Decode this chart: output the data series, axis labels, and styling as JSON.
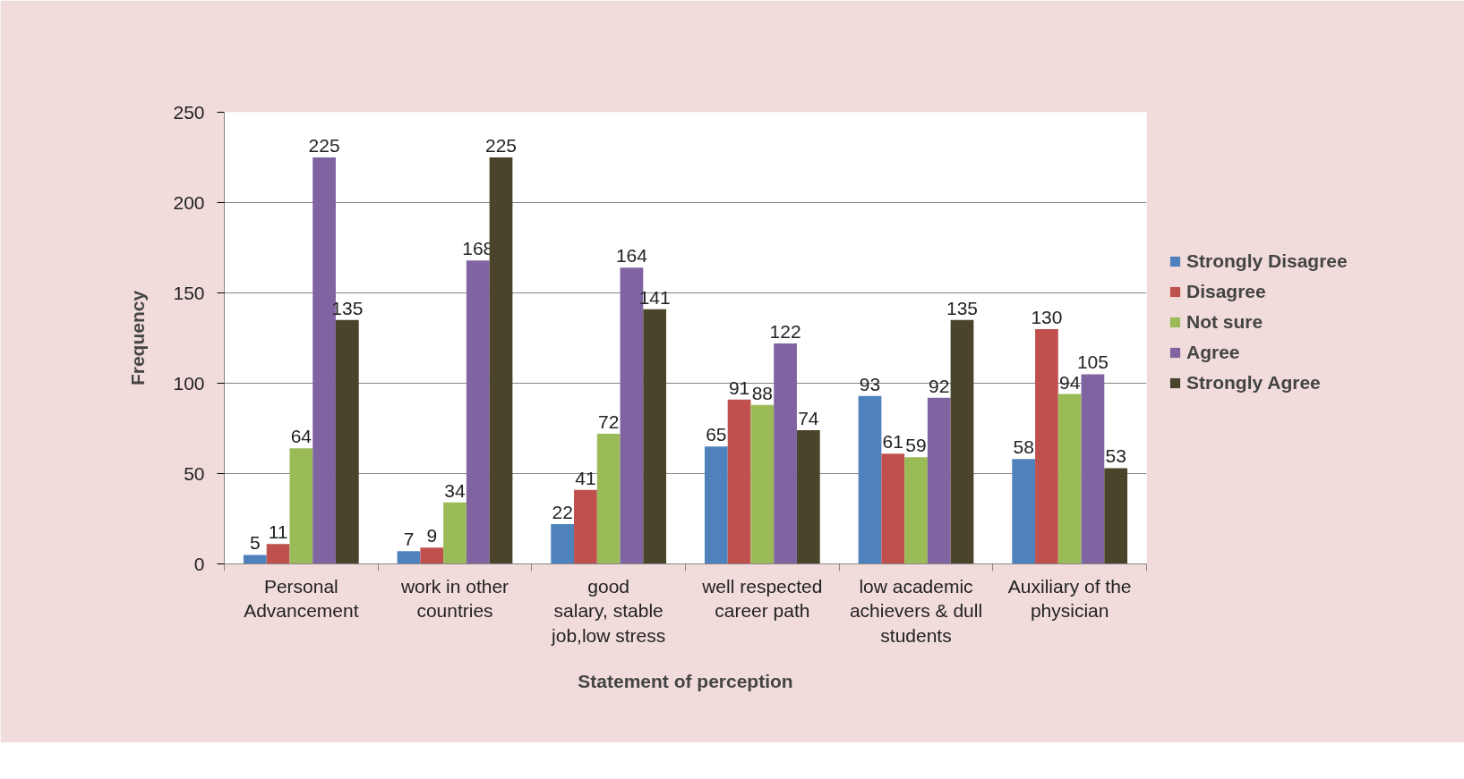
{
  "chart_data": {
    "type": "bar",
    "categories": [
      "Personal\nAdvancement",
      "work in other\ncountries",
      "good\nsalary, stable\njob,low stress",
      "well respected\ncareer path",
      "low academic\nachievers & dull\nstudents",
      "Auxiliary of the\nphysician"
    ],
    "series": [
      {
        "name": "Strongly Disagree",
        "color": "#4f81bd",
        "values": [
          5,
          7,
          22,
          65,
          93,
          58
        ]
      },
      {
        "name": "Disagree",
        "color": "#c0504d",
        "values": [
          11,
          9,
          41,
          91,
          61,
          130
        ]
      },
      {
        "name": "Not sure",
        "color": "#9bbb59",
        "values": [
          64,
          34,
          72,
          88,
          59,
          94
        ]
      },
      {
        "name": "Agree",
        "color": "#8064a2",
        "values": [
          225,
          168,
          164,
          122,
          92,
          105
        ]
      },
      {
        "name": "Strongly Agree",
        "color": "#4a452a",
        "values": [
          135,
          225,
          141,
          74,
          135,
          53
        ]
      }
    ],
    "xlabel": "Statement of perception",
    "ylabel": "Frequency",
    "ylim": [
      0,
      250
    ],
    "yticks": [
      0,
      50,
      100,
      150,
      200,
      250
    ],
    "grid": "y",
    "legend": "right",
    "data_labels": true
  }
}
